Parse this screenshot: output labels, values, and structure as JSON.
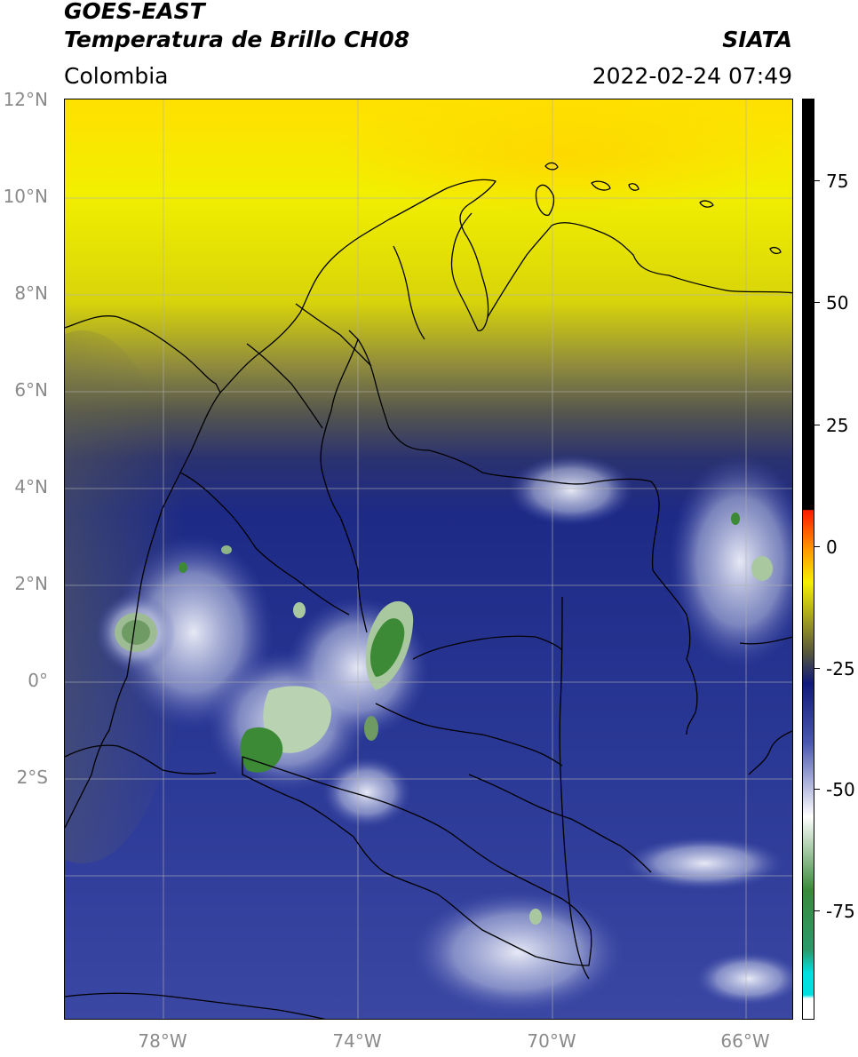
{
  "header": {
    "satellite": "GOES-EAST",
    "product": "Temperatura de Brillo CH08",
    "region": "Colombia",
    "agency": "SIATA",
    "datetime": "2022-02-24 07:49"
  },
  "map": {
    "latitude_labels": [
      "12°N",
      "10°N",
      "8°N",
      "6°N",
      "4°N",
      "2°N",
      "0°",
      "2°S"
    ],
    "longitude_labels": [
      "78°W",
      "74°W",
      "70°W",
      "66°W"
    ],
    "colors": {
      "warm_yellow": "#ffee00",
      "band_olive": "#7a7a3a",
      "cold_navy": "#1f2b86",
      "mid_blue": "#3a48a6",
      "cloud_white": "#e8ecf6",
      "deep_green": "#3d8a36",
      "pale_green": "#a9c8a0",
      "border_line": "#000000",
      "grid_line": "#b0b0b0"
    }
  },
  "colorbar": {
    "labels": [
      "75",
      "50",
      "25",
      "0",
      "-25",
      "-50",
      "-75"
    ],
    "colors": [
      "#ffffff",
      "#00e0e0",
      "#2a9a6a",
      "#3a8a3a",
      "#ffffff",
      "#4a58b0",
      "#101a7a",
      "#5a5a3a",
      "#f5f000",
      "#ff9900",
      "#ff2200",
      "#000000"
    ]
  }
}
